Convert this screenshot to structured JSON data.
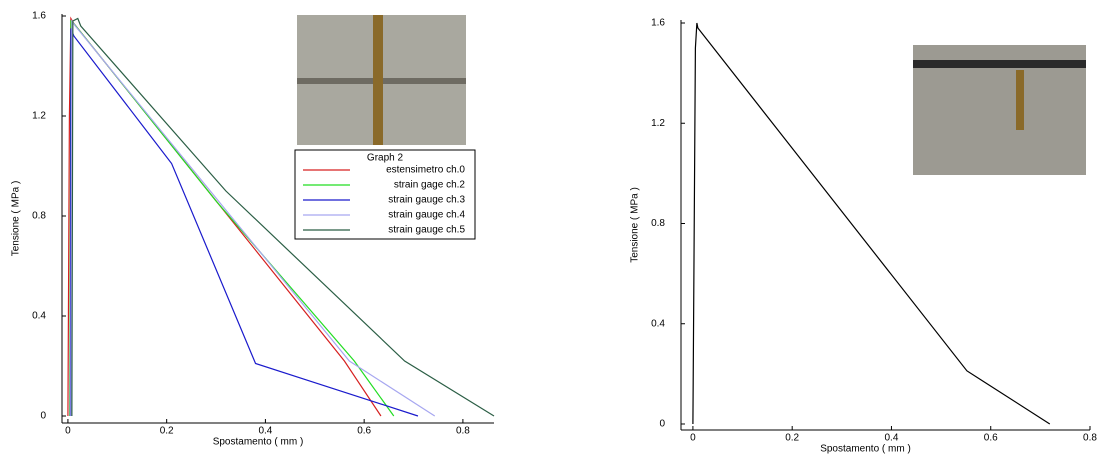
{
  "chart_data": [
    {
      "type": "line",
      "x_label": "Spostamento ( mm )",
      "y_label": "Tensione ( MPa )",
      "xlim": [
        -0.012,
        0.863
      ],
      "ylim": [
        -0.028,
        1.608
      ],
      "xticks": [
        0,
        0.2,
        0.4,
        0.6,
        0.8
      ],
      "yticks": [
        0,
        0.4,
        0.8,
        1.2,
        1.6
      ],
      "legend_title": "Graph 2",
      "series": [
        {
          "name": "estensimetro ch.0",
          "color": "#d62020",
          "x": [
            0,
            0.003,
            0.006,
            0.012,
            0.56,
            0.634
          ],
          "values": [
            0,
            1.2,
            1.59,
            1.57,
            0.22,
            0
          ]
        },
        {
          "name": "strain gage ch.2",
          "color": "#22dd22",
          "x": [
            0.004,
            0.006,
            0.012,
            0.3,
            0.58,
            0.66
          ],
          "values": [
            0,
            1.58,
            1.57,
            0.86,
            0.22,
            0
          ]
        },
        {
          "name": "strain gauge ch.3",
          "color": "#1a1acc",
          "x": [
            0.005,
            0.006,
            0.012,
            0.21,
            0.38,
            0.709
          ],
          "values": [
            0,
            1.55,
            1.52,
            1.01,
            0.21,
            0
          ]
        },
        {
          "name": "strain gauge ch.4",
          "color": "#a7a7f0",
          "x": [
            0.006,
            0.008,
            0.015,
            0.57,
            0.743
          ],
          "values": [
            0,
            1.58,
            1.56,
            0.22,
            0
          ]
        },
        {
          "name": "strain gauge ch.5",
          "color": "#2b5e45",
          "x": [
            0.008,
            0.01,
            0.02,
            0.026,
            0.32,
            0.682,
            0.863
          ],
          "values": [
            0,
            1.58,
            1.59,
            1.56,
            0.9,
            0.22,
            0
          ]
        }
      ]
    },
    {
      "type": "line",
      "x_label": "Spostamento ( mm )",
      "y_label": "Tensione ( MPa )",
      "xlim": [
        -0.024,
        0.8
      ],
      "ylim": [
        -0.024,
        1.612
      ],
      "xticks": [
        0,
        0.2,
        0.4,
        0.6,
        0.8
      ],
      "yticks": [
        0,
        0.4,
        0.8,
        1.2,
        1.6
      ],
      "series": [
        {
          "color": "#000000",
          "x": [
            0,
            0.005,
            0.008,
            0.01,
            0.552,
            0.719
          ],
          "values": [
            0,
            1.5,
            1.6,
            1.58,
            0.212,
            0
          ]
        }
      ]
    }
  ]
}
